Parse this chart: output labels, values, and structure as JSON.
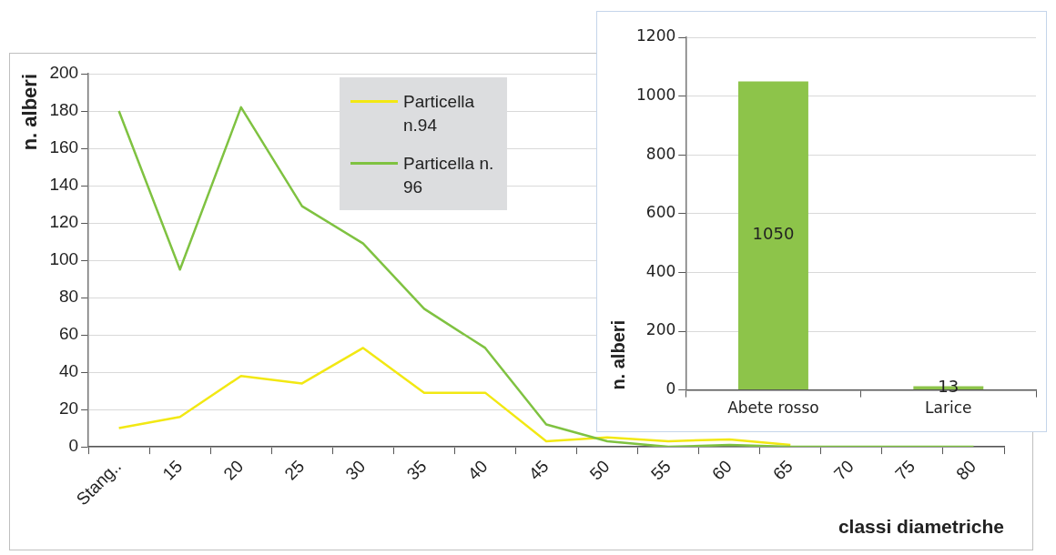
{
  "chart_data": [
    {
      "type": "line",
      "categories": [
        "Stang..",
        "15",
        "20",
        "25",
        "30",
        "35",
        "40",
        "45",
        "50",
        "55",
        "60",
        "65",
        "70",
        "75",
        "80"
      ],
      "xlabel": "classi diametriche",
      "ylabel": "n. alberi",
      "ylim": [
        0,
        200
      ],
      "yticks": [
        0,
        20,
        40,
        60,
        80,
        100,
        120,
        140,
        160,
        180,
        200
      ],
      "grid": "y",
      "legend": "top",
      "marker": "none",
      "series": [
        {
          "name": "Particella n.94",
          "color": "#f2e813",
          "values": [
            10,
            16,
            38,
            34,
            53,
            29,
            29,
            3,
            5,
            3,
            4,
            1,
            null,
            null,
            null
          ]
        },
        {
          "name": "Particella n. 96",
          "color": "#7fc241",
          "values": [
            180,
            95,
            182,
            129,
            109,
            74,
            53,
            12,
            3,
            0,
            1,
            0,
            0,
            0,
            0
          ]
        }
      ]
    },
    {
      "type": "bar",
      "categories": [
        "Abete rosso",
        "Larice"
      ],
      "values": [
        1050,
        13
      ],
      "color": "#8dc44a",
      "ylabel": "n. alberi",
      "ylim": [
        0,
        1200
      ],
      "yticks": [
        0,
        200,
        400,
        600,
        800,
        1000,
        1200
      ],
      "grid": "y",
      "data_labels": true
    }
  ]
}
